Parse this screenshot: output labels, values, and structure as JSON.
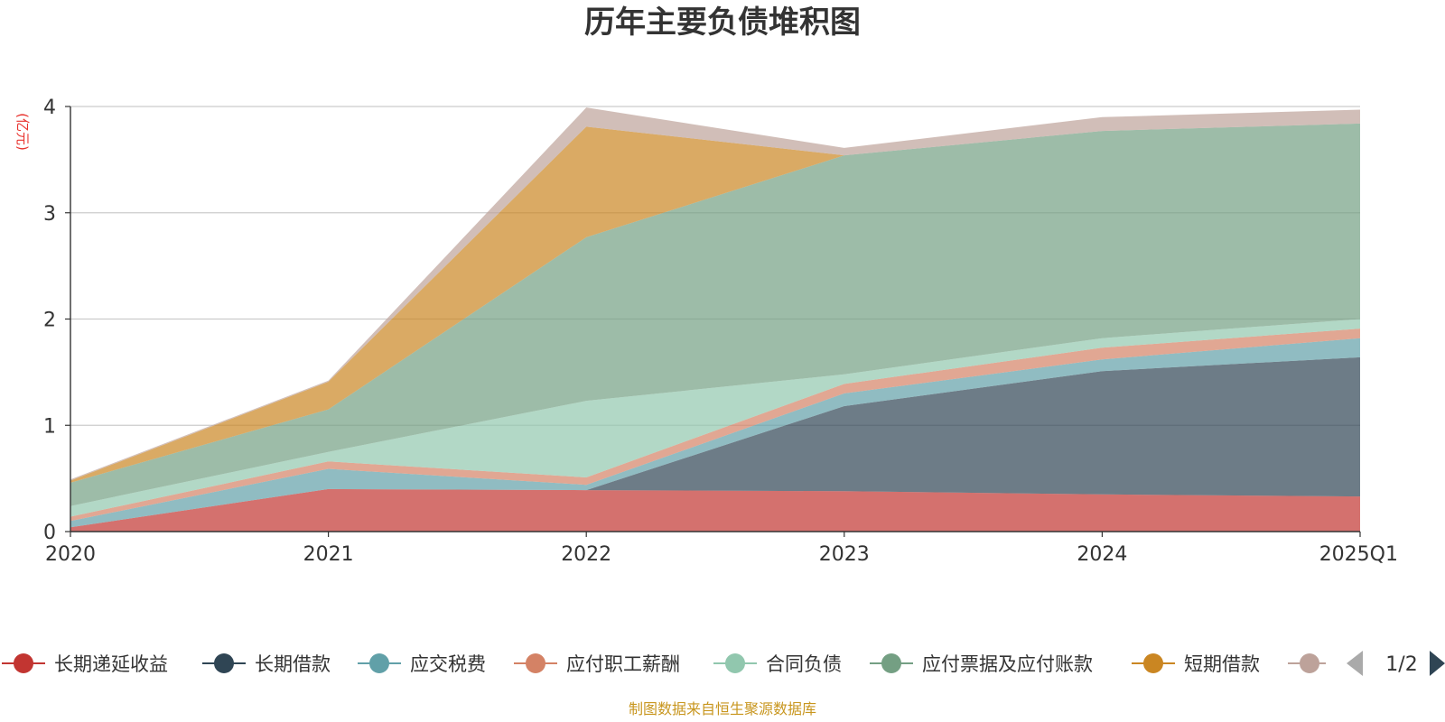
{
  "chart_data": {
    "type": "area",
    "stacked": true,
    "title": "历年主要负债堆积图",
    "unit_label": "(亿元)",
    "categories": [
      "2020",
      "2021",
      "2022",
      "2023",
      "2024",
      "2025Q1"
    ],
    "ylim": [
      0,
      4
    ],
    "yticks": [
      "0",
      "1",
      "2",
      "3",
      "4"
    ],
    "grid": true,
    "legend_position": "bottom",
    "series": [
      {
        "name": "长期递延收益",
        "color": "#c23531",
        "values": [
          0.04,
          0.4,
          0.39,
          0.38,
          0.35,
          0.33
        ]
      },
      {
        "name": "长期借款",
        "color": "#2f4554",
        "values": [
          0.0,
          0.0,
          0.0,
          0.8,
          1.16,
          1.31
        ]
      },
      {
        "name": "应交税费",
        "color": "#61a0a8",
        "values": [
          0.06,
          0.19,
          0.05,
          0.12,
          0.11,
          0.18
        ]
      },
      {
        "name": "应付职工薪酬",
        "color": "#d48265",
        "values": [
          0.04,
          0.07,
          0.07,
          0.09,
          0.11,
          0.09
        ]
      },
      {
        "name": "合同负债",
        "color": "#91c7ae",
        "values": [
          0.1,
          0.09,
          0.72,
          0.09,
          0.09,
          0.09
        ]
      },
      {
        "name": "应付票据及应付账款",
        "color": "#749f83",
        "values": [
          0.22,
          0.4,
          1.54,
          2.06,
          1.95,
          1.84
        ]
      },
      {
        "name": "短期借款",
        "color": "#ca8622",
        "values": [
          0.02,
          0.26,
          1.04,
          0.0,
          0.0,
          0.0
        ]
      },
      {
        "name": "",
        "color": "#bda29a",
        "values": [
          0.01,
          0.01,
          0.18,
          0.07,
          0.13,
          0.13
        ]
      }
    ],
    "legend_page": "1/2"
  },
  "footer": {
    "source": "制图数据来自恒生聚源数据库"
  }
}
